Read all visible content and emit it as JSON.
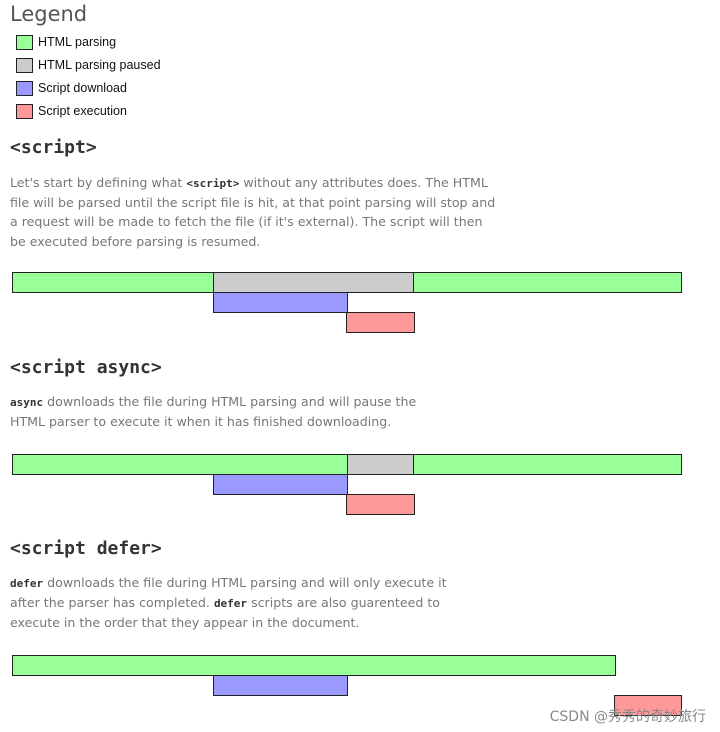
{
  "legend": {
    "title": "Legend",
    "items": [
      {
        "label": "HTML parsing",
        "color": "#99ff99"
      },
      {
        "label": "HTML parsing paused",
        "color": "#cccccc"
      },
      {
        "label": "Script download",
        "color": "#9999ff"
      },
      {
        "label": "Script execution",
        "color": "#ff9999"
      }
    ]
  },
  "sections": [
    {
      "title": "<script>",
      "desc": [
        {
          "t": "Let's start by defining what "
        },
        {
          "code": "<script>"
        },
        {
          "t": " without any attributes does. The HTML file will be parsed until the script file is hit, at that point parsing will stop and a request will be made to fetch the file (if it's external). The script will then be executed before parsing is resumed."
        }
      ]
    },
    {
      "title": "<script async>",
      "desc": [
        {
          "code": "async"
        },
        {
          "t": " downloads the file during HTML parsing and will pause the HTML parser to execute it when it has finished downloading."
        }
      ]
    },
    {
      "title": "<script defer>",
      "desc": [
        {
          "code": "defer"
        },
        {
          "t": " downloads the file during HTML parsing and will only execute it after the parser has completed. "
        },
        {
          "code": "defer"
        },
        {
          "t": " scripts are also guarenteed to execute in the order that they appear in the document."
        }
      ]
    }
  ],
  "watermark": "CSDN @秀秀的奇妙旅行"
}
